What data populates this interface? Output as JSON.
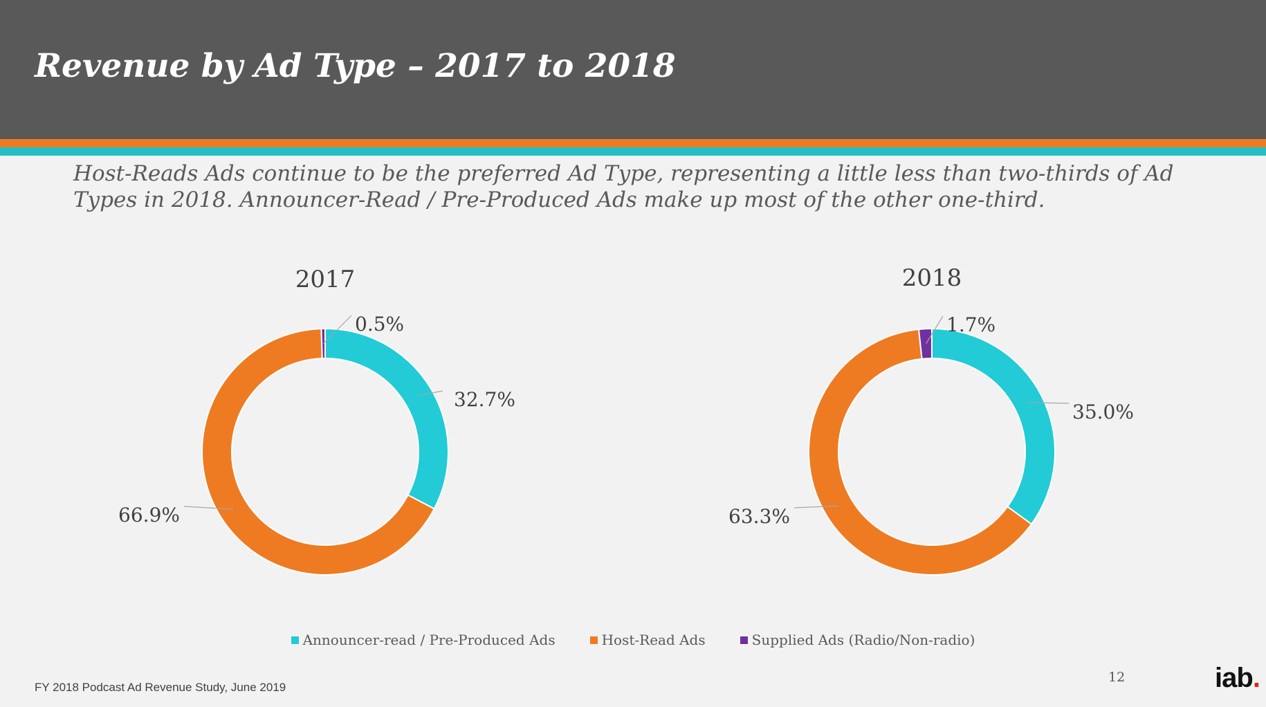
{
  "header": {
    "title": "Revenue by Ad Type – 2017 to 2018"
  },
  "subtitle": "Host-Reads Ads continue to be the preferred Ad Type, representing a little less than two-thirds of Ad Types in 2018. Announcer-Read / Pre-Produced Ads make up most of the other one-third.",
  "colors": {
    "header_bg": "#595959",
    "orange": "#ee7b22",
    "teal": "#22cbd6",
    "purple": "#7030a0"
  },
  "chart_data": [
    {
      "type": "pie",
      "title": "2017",
      "categories": [
        "Announcer-read / Pre-Produced Ads",
        "Host-Read Ads",
        "Supplied Ads (Radio/Non-radio)"
      ],
      "values": [
        32.7,
        66.9,
        0.5
      ],
      "labels": [
        "32.7%",
        "66.9%",
        "0.5%"
      ],
      "colors": [
        "#22cbd6",
        "#ee7b22",
        "#7030a0"
      ]
    },
    {
      "type": "pie",
      "title": "2018",
      "categories": [
        "Announcer-read / Pre-Produced Ads",
        "Host-Read Ads",
        "Supplied Ads (Radio/Non-radio)"
      ],
      "values": [
        35.0,
        63.3,
        1.7
      ],
      "labels": [
        "35.0%",
        "63.3%",
        "1.7%"
      ],
      "colors": [
        "#22cbd6",
        "#ee7b22",
        "#7030a0"
      ]
    }
  ],
  "legend": {
    "placement": "bottom",
    "items": [
      {
        "label": "Announcer-read / Pre-Produced Ads",
        "color": "#22cbd6"
      },
      {
        "label": "Host-Read Ads",
        "color": "#ee7b22"
      },
      {
        "label": "Supplied Ads (Radio/Non-radio)",
        "color": "#7030a0"
      }
    ]
  },
  "footer": {
    "source": "FY 2018 Podcast Ad Revenue Study, June 2019",
    "page_number": "12",
    "logo_text": "iab."
  }
}
